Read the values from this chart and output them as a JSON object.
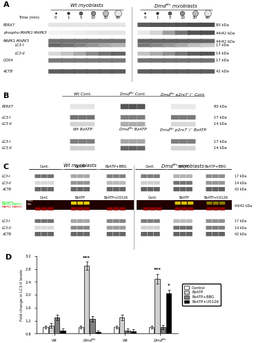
{
  "fig_width": 3.72,
  "fig_height": 5.0,
  "dpi": 100,
  "panel_D": {
    "ylabel": "Fold change in LC3-II levels",
    "group_labels": [
      "Wt",
      "Dmdᴹˣ",
      "Wt",
      "Dmdᴹˣ"
    ],
    "conditions": [
      "Control",
      "BzATP",
      "BzATP+BBG",
      "BzATP+U0126"
    ],
    "colors": [
      "#ffffff",
      "#d0d0d0",
      "#808080",
      "#000000"
    ],
    "ylim": [
      0.8,
      3.2
    ],
    "yticks": [
      0.8,
      1.2,
      1.6,
      2.0,
      2.4,
      2.8,
      3.2
    ],
    "data": [
      [
        1.0,
        1.05,
        1.3,
        0.9
      ],
      [
        1.0,
        2.9,
        1.25,
        0.85
      ],
      [
        1.0,
        1.3,
        0.9,
        0.88
      ],
      [
        1.0,
        2.5,
        1.0,
        2.05
      ]
    ],
    "errors": [
      [
        0.05,
        0.07,
        0.08,
        0.05
      ],
      [
        0.05,
        0.12,
        0.09,
        0.05
      ],
      [
        0.05,
        0.08,
        0.06,
        0.05
      ],
      [
        0.05,
        0.15,
        0.07,
        0.1
      ]
    ],
    "sig": {
      "1_1": "***",
      "3_1": "***",
      "3_3": "*"
    }
  }
}
